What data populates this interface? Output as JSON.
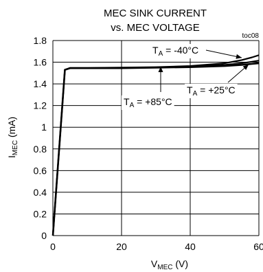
{
  "chart_data": {
    "type": "line",
    "title": [
      "MEC SINK CURRENT",
      "vs. MEC VOLTAGE"
    ],
    "figure_id": "toc08",
    "xlabel": {
      "main": "V",
      "sub": "MEC",
      "unit": " (V)"
    },
    "ylabel": {
      "main": "I",
      "sub": "MEC",
      "unit": " (mA)"
    },
    "xlim": [
      0,
      60
    ],
    "ylim": [
      0,
      1.8
    ],
    "x_ticks": [
      "0",
      "20",
      "40",
      "60"
    ],
    "y_ticks": [
      "0",
      "0.2",
      "0.4",
      "0.6",
      "0.8",
      "1",
      "1.2",
      "1.4",
      "1.6",
      "1.8"
    ],
    "x_grid_step": 20,
    "y_grid_step": 0.2,
    "grid": true,
    "series": [
      {
        "name": "T_A = -40°C",
        "x": [
          0,
          3.5,
          5,
          10,
          20,
          30,
          40,
          50,
          55,
          58,
          60
        ],
        "y": [
          0,
          1.53,
          1.548,
          1.548,
          1.55,
          1.555,
          1.565,
          1.59,
          1.62,
          1.645,
          1.665
        ]
      },
      {
        "name": "T_A = +25°C",
        "x": [
          0,
          3.5,
          5,
          10,
          20,
          30,
          40,
          50,
          55,
          58,
          60
        ],
        "y": [
          0,
          1.53,
          1.545,
          1.545,
          1.548,
          1.552,
          1.56,
          1.575,
          1.59,
          1.605,
          1.615
        ]
      },
      {
        "name": "T_A = +85°C",
        "x": [
          0,
          3.5,
          5,
          10,
          20,
          30,
          40,
          50,
          55,
          58,
          60
        ],
        "y": [
          0,
          1.53,
          1.545,
          1.545,
          1.545,
          1.55,
          1.555,
          1.565,
          1.575,
          1.585,
          1.59
        ]
      }
    ],
    "annotations": [
      {
        "text_main": "T",
        "text_sub": "A",
        "text_rest": " = -40°C",
        "series": 0
      },
      {
        "text_main": "T",
        "text_sub": "A",
        "text_rest": " = +25°C",
        "series": 1
      },
      {
        "text_main": "T",
        "text_sub": "A",
        "text_rest": " = +85°C",
        "series": 2
      }
    ]
  }
}
